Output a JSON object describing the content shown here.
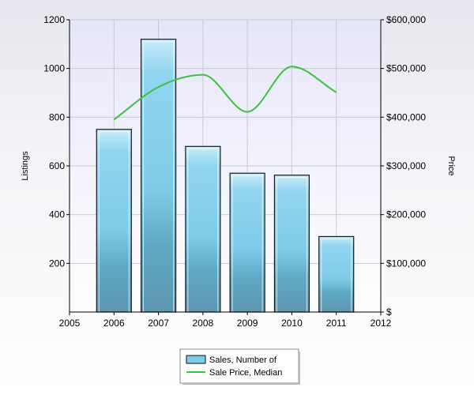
{
  "chart_data": {
    "type": "bar",
    "title": "",
    "categories": [
      "2006",
      "2007",
      "2008",
      "2009",
      "2010",
      "2011"
    ],
    "x_ticks": [
      "2005",
      "2006",
      "2007",
      "2008",
      "2009",
      "2010",
      "2011",
      "2012"
    ],
    "series": [
      {
        "name": "Sales, Number of",
        "type": "bar",
        "axis": "left",
        "color": "#7ccbea",
        "values": [
          750,
          1120,
          680,
          570,
          562,
          310
        ]
      },
      {
        "name": "Sale Price, Median",
        "type": "line",
        "axis": "right",
        "color": "#3ec23e",
        "values": [
          395000,
          462000,
          487000,
          411000,
          504000,
          451000
        ]
      }
    ],
    "ylabel_left": "Listings",
    "ylabel_right": "Price",
    "ylim_left": [
      0,
      1200
    ],
    "yticks_left": [
      "200",
      "400",
      "600",
      "800",
      "1000",
      "1200"
    ],
    "ylim_right": [
      0,
      600000
    ],
    "yticks_right": [
      "$",
      "$100,000",
      "$200,000",
      "$300,000",
      "$400,000",
      "$500,000",
      "$600,000"
    ],
    "xlim": [
      2005,
      2012
    ],
    "grid": true,
    "legend_position": "bottom-center"
  }
}
